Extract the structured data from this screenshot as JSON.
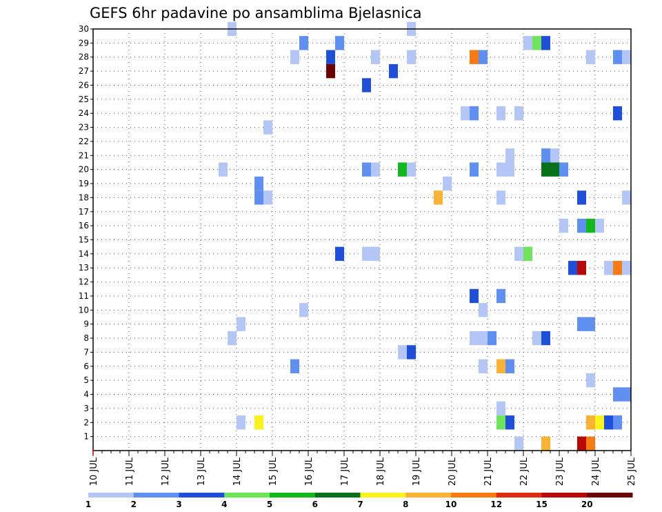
{
  "chart_data": {
    "type": "heatmap",
    "title": "GEFS 6hr padavine po ansamblima Bjelasnica",
    "x_tick_labels": [
      "10 JUL",
      "11 JUL",
      "12 JUL",
      "13 JUL",
      "14 JUL",
      "15 JUL",
      "16 JUL",
      "17 JUL",
      "18 JUL",
      "19 JUL",
      "20 JUL",
      "21 JUL",
      "22 JUL",
      "23 JUL",
      "24 JUL",
      "25 JUL"
    ],
    "x_range_days": [
      10,
      25
    ],
    "y_tick_labels": [
      "1",
      "2",
      "3",
      "4",
      "5",
      "6",
      "7",
      "8",
      "9",
      "10",
      "11",
      "12",
      "13",
      "14",
      "15",
      "16",
      "17",
      "18",
      "19",
      "20",
      "21",
      "22",
      "23",
      "24",
      "25",
      "26",
      "27",
      "28",
      "29",
      "30"
    ],
    "y_range": [
      0,
      30
    ],
    "grid": true,
    "colorbar": {
      "labels": [
        "1",
        "2",
        "3",
        "4",
        "5",
        "6",
        "7",
        "8",
        "10",
        "12",
        "15",
        "20"
      ],
      "colors": [
        "#b3c6f6",
        "#5f8ff0",
        "#1f4fd8",
        "#6fe45a",
        "#12b81e",
        "#07701a",
        "#fbf31a",
        "#fbb336",
        "#f87a12",
        "#e02a12",
        "#b80808",
        "#6b0505"
      ]
    },
    "cells": [
      {
        "t": 13.875,
        "m": 30,
        "c": 0
      },
      {
        "t": 18.875,
        "m": 30,
        "c": 0
      },
      {
        "t": 15.875,
        "m": 29,
        "c": 1
      },
      {
        "t": 16.875,
        "m": 29,
        "c": 1
      },
      {
        "t": 22.125,
        "m": 29,
        "c": 0
      },
      {
        "t": 22.375,
        "m": 29,
        "c": 3
      },
      {
        "t": 22.625,
        "m": 29,
        "c": 2
      },
      {
        "t": 15.625,
        "m": 28,
        "c": 0
      },
      {
        "t": 16.625,
        "m": 28,
        "c": 2
      },
      {
        "t": 17.875,
        "m": 28,
        "c": 0
      },
      {
        "t": 18.875,
        "m": 28,
        "c": 0
      },
      {
        "t": 20.625,
        "m": 28,
        "c": 8
      },
      {
        "t": 20.875,
        "m": 28,
        "c": 1
      },
      {
        "t": 23.875,
        "m": 28,
        "c": 0
      },
      {
        "t": 24.625,
        "m": 28,
        "c": 1
      },
      {
        "t": 24.875,
        "m": 28,
        "c": 0
      },
      {
        "t": 16.625,
        "m": 27,
        "c": 11
      },
      {
        "t": 18.375,
        "m": 27,
        "c": 2
      },
      {
        "t": 17.625,
        "m": 26,
        "c": 2
      },
      {
        "t": 20.375,
        "m": 24,
        "c": 0
      },
      {
        "t": 20.625,
        "m": 24,
        "c": 1
      },
      {
        "t": 21.375,
        "m": 24,
        "c": 0
      },
      {
        "t": 21.875,
        "m": 24,
        "c": 0
      },
      {
        "t": 24.625,
        "m": 24,
        "c": 2
      },
      {
        "t": 14.875,
        "m": 23,
        "c": 0
      },
      {
        "t": 21.625,
        "m": 21,
        "c": 0
      },
      {
        "t": 22.625,
        "m": 21,
        "c": 1
      },
      {
        "t": 22.875,
        "m": 21,
        "c": 0
      },
      {
        "t": 13.625,
        "m": 20,
        "c": 0
      },
      {
        "t": 17.625,
        "m": 20,
        "c": 1
      },
      {
        "t": 17.875,
        "m": 20,
        "c": 0
      },
      {
        "t": 18.625,
        "m": 20,
        "c": 4
      },
      {
        "t": 18.875,
        "m": 20,
        "c": 0
      },
      {
        "t": 20.625,
        "m": 20,
        "c": 1
      },
      {
        "t": 21.375,
        "m": 20,
        "c": 0
      },
      {
        "t": 21.625,
        "m": 20,
        "c": 0
      },
      {
        "t": 22.625,
        "m": 20,
        "c": 5
      },
      {
        "t": 22.875,
        "m": 20,
        "c": 5
      },
      {
        "t": 23.125,
        "m": 20,
        "c": 1
      },
      {
        "t": 14.625,
        "m": 19,
        "c": 1
      },
      {
        "t": 19.875,
        "m": 19,
        "c": 0
      },
      {
        "t": 14.625,
        "m": 18,
        "c": 1
      },
      {
        "t": 14.875,
        "m": 18,
        "c": 0
      },
      {
        "t": 19.625,
        "m": 18,
        "c": 7
      },
      {
        "t": 21.375,
        "m": 18,
        "c": 0
      },
      {
        "t": 23.625,
        "m": 18,
        "c": 2
      },
      {
        "t": 24.875,
        "m": 18,
        "c": 0
      },
      {
        "t": 23.125,
        "m": 16,
        "c": 0
      },
      {
        "t": 23.625,
        "m": 16,
        "c": 1
      },
      {
        "t": 23.875,
        "m": 16,
        "c": 4
      },
      {
        "t": 24.125,
        "m": 16,
        "c": 0
      },
      {
        "t": 16.875,
        "m": 14,
        "c": 2
      },
      {
        "t": 17.625,
        "m": 14,
        "c": 0
      },
      {
        "t": 17.875,
        "m": 14,
        "c": 0
      },
      {
        "t": 21.875,
        "m": 14,
        "c": 0
      },
      {
        "t": 22.125,
        "m": 14,
        "c": 3
      },
      {
        "t": 23.375,
        "m": 13,
        "c": 2
      },
      {
        "t": 23.625,
        "m": 13,
        "c": 10
      },
      {
        "t": 24.375,
        "m": 13,
        "c": 0
      },
      {
        "t": 24.625,
        "m": 13,
        "c": 8
      },
      {
        "t": 24.875,
        "m": 13,
        "c": 0
      },
      {
        "t": 20.625,
        "m": 11,
        "c": 2
      },
      {
        "t": 21.375,
        "m": 11,
        "c": 1
      },
      {
        "t": 15.875,
        "m": 10,
        "c": 0
      },
      {
        "t": 20.875,
        "m": 10,
        "c": 0
      },
      {
        "t": 14.125,
        "m": 9,
        "c": 0
      },
      {
        "t": 23.625,
        "m": 9,
        "c": 1
      },
      {
        "t": 23.875,
        "m": 9,
        "c": 1
      },
      {
        "t": 13.875,
        "m": 8,
        "c": 0
      },
      {
        "t": 20.625,
        "m": 8,
        "c": 0
      },
      {
        "t": 20.875,
        "m": 8,
        "c": 0
      },
      {
        "t": 21.125,
        "m": 8,
        "c": 1
      },
      {
        "t": 22.375,
        "m": 8,
        "c": 0
      },
      {
        "t": 22.625,
        "m": 8,
        "c": 2
      },
      {
        "t": 18.625,
        "m": 7,
        "c": 0
      },
      {
        "t": 18.875,
        "m": 7,
        "c": 2
      },
      {
        "t": 15.625,
        "m": 6,
        "c": 1
      },
      {
        "t": 20.875,
        "m": 6,
        "c": 0
      },
      {
        "t": 21.375,
        "m": 6,
        "c": 7
      },
      {
        "t": 21.625,
        "m": 6,
        "c": 1
      },
      {
        "t": 23.875,
        "m": 5,
        "c": 0
      },
      {
        "t": 24.625,
        "m": 4,
        "c": 1
      },
      {
        "t": 24.875,
        "m": 4,
        "c": 1
      },
      {
        "t": 21.375,
        "m": 3,
        "c": 0
      },
      {
        "t": 14.125,
        "m": 2,
        "c": 0
      },
      {
        "t": 14.625,
        "m": 2,
        "c": 6
      },
      {
        "t": 21.375,
        "m": 2,
        "c": 3
      },
      {
        "t": 21.625,
        "m": 2,
        "c": 2
      },
      {
        "t": 23.875,
        "m": 2,
        "c": 7
      },
      {
        "t": 24.125,
        "m": 2,
        "c": 6
      },
      {
        "t": 24.375,
        "m": 2,
        "c": 2
      },
      {
        "t": 24.625,
        "m": 2,
        "c": 1
      },
      {
        "t": 21.875,
        "m": 0.5,
        "c": 0
      },
      {
        "t": 22.625,
        "m": 0.5,
        "c": 7
      },
      {
        "t": 23.625,
        "m": 0.5,
        "c": 10
      },
      {
        "t": 23.875,
        "m": 0.5,
        "c": 8
      }
    ]
  }
}
